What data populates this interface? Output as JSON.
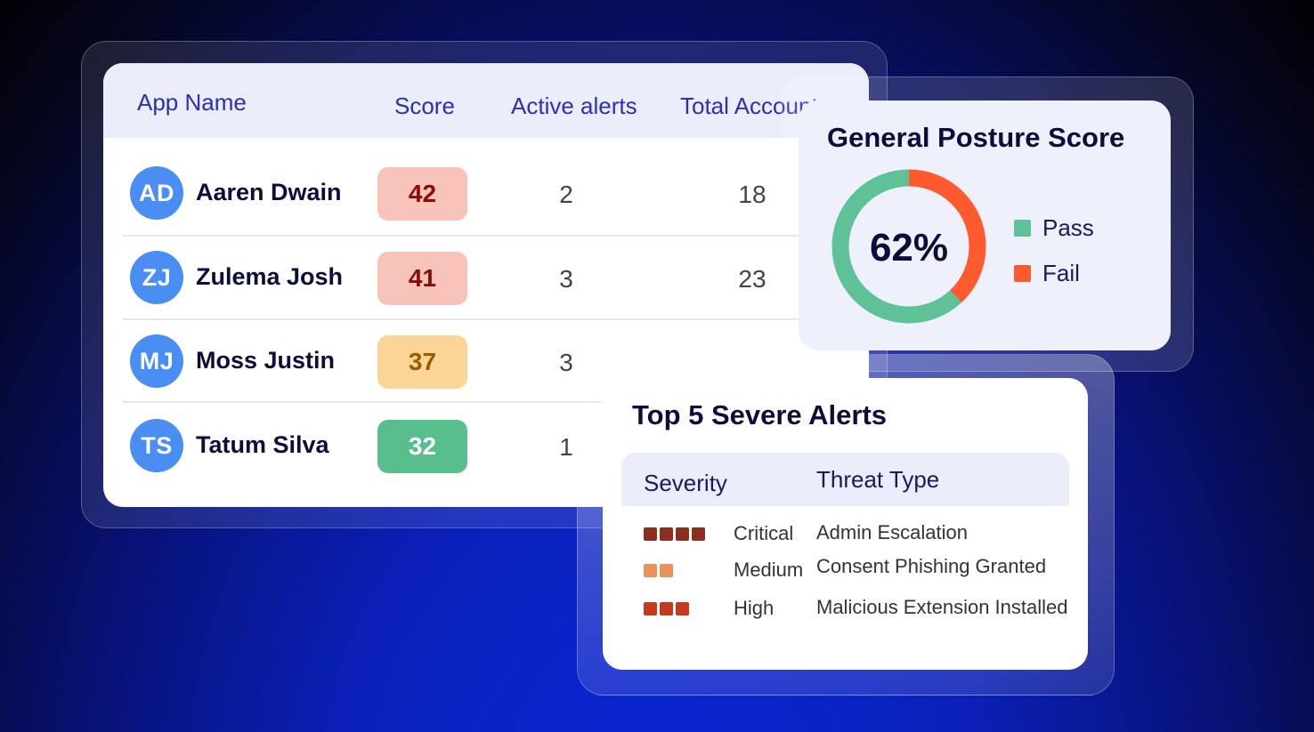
{
  "apps_table": {
    "headers": [
      "App Name",
      "Score",
      "Active alerts",
      "Total Accounts"
    ],
    "rows": [
      {
        "initials": "AD",
        "name": "Aaren Dwain",
        "score": "42",
        "active_alerts": "2",
        "total_accounts": "18"
      },
      {
        "initials": "ZJ",
        "name": "Zulema Josh",
        "score": "41",
        "active_alerts": "3",
        "total_accounts": "23"
      },
      {
        "initials": "MJ",
        "name": "Moss Justin",
        "score": "37",
        "active_alerts": "3",
        "total_accounts": ""
      },
      {
        "initials": "TS",
        "name": "Tatum Silva",
        "score": "32",
        "active_alerts": "1",
        "total_accounts": ""
      }
    ],
    "score_colors": [
      {
        "bg": "#f8c4ba",
        "fg": "#8c0a0a"
      },
      {
        "bg": "#f8c4ba",
        "fg": "#8c0a0a"
      },
      {
        "bg": "#fbd596",
        "fg": "#9a5c00"
      },
      {
        "bg": "#59be8d",
        "fg": "#ffffff"
      }
    ]
  },
  "posture": {
    "title": "General Posture Score",
    "percent_label": "62%",
    "pass_fraction": 0.62,
    "legend": [
      {
        "label": "Pass",
        "color": "#5fc196"
      },
      {
        "label": "Fail",
        "color": "#ff5a2e"
      }
    ]
  },
  "severe_alerts": {
    "title": "Top 5 Severe Alerts",
    "headers": [
      "Severity",
      "Threat Type"
    ],
    "rows": [
      {
        "severity": "Critical",
        "level": 4,
        "color": "#8c2f1e",
        "threat": "Admin Escalation"
      },
      {
        "severity": "Medium",
        "level": 2,
        "color": "#e9935a",
        "threat": "Consent Phishing Granted"
      },
      {
        "severity": "High",
        "level": 3,
        "color": "#c8381f",
        "threat": "Malicious Extension Installed"
      }
    ]
  }
}
